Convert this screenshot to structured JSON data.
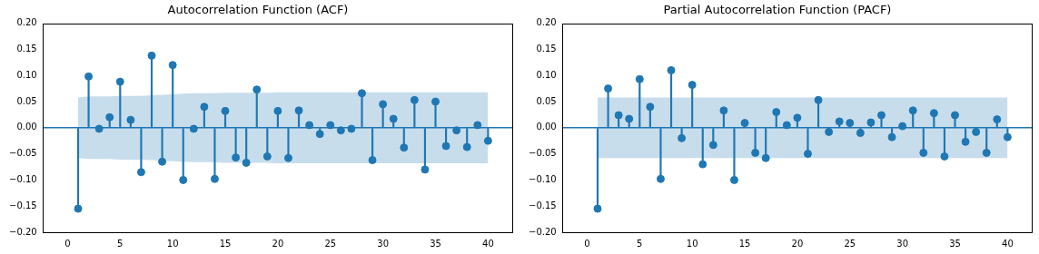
{
  "chart_data": [
    {
      "type": "stem",
      "title": "Autocorrelation Function (ACF)",
      "color": "#1f77b4",
      "x": [
        1,
        2,
        3,
        4,
        5,
        6,
        7,
        8,
        9,
        10,
        11,
        12,
        13,
        14,
        15,
        16,
        17,
        18,
        19,
        20,
        21,
        22,
        23,
        24,
        25,
        26,
        27,
        28,
        29,
        30,
        31,
        32,
        33,
        34,
        35,
        36,
        37,
        38,
        39,
        40
      ],
      "values": [
        -0.155,
        0.098,
        -0.002,
        0.02,
        0.088,
        0.015,
        -0.085,
        0.138,
        -0.065,
        0.12,
        -0.1,
        -0.002,
        0.04,
        -0.098,
        0.032,
        -0.057,
        -0.067,
        0.073,
        -0.055,
        0.032,
        -0.058,
        0.033,
        0.005,
        -0.012,
        0.005,
        -0.005,
        -0.002,
        0.066,
        -0.062,
        0.045,
        0.017,
        -0.038,
        0.053,
        -0.08,
        0.05,
        -0.035,
        -0.005,
        -0.037,
        0.005,
        -0.025
      ],
      "band": {
        "upper": [
          0.058,
          0.06,
          0.06,
          0.06,
          0.061,
          0.061,
          0.061,
          0.062,
          0.063,
          0.064,
          0.065,
          0.066,
          0.066,
          0.066,
          0.067,
          0.067,
          0.067,
          0.067,
          0.067,
          0.068,
          0.068,
          0.068,
          0.068,
          0.068,
          0.068,
          0.068,
          0.068,
          0.068,
          0.068,
          0.068,
          0.068,
          0.068,
          0.068,
          0.068,
          0.068,
          0.068,
          0.068,
          0.068,
          0.068,
          0.068
        ],
        "lower": [
          -0.058,
          -0.06,
          -0.06,
          -0.06,
          -0.061,
          -0.061,
          -0.061,
          -0.062,
          -0.063,
          -0.064,
          -0.065,
          -0.066,
          -0.066,
          -0.066,
          -0.067,
          -0.067,
          -0.067,
          -0.067,
          -0.067,
          -0.068,
          -0.068,
          -0.068,
          -0.068,
          -0.068,
          -0.068,
          -0.068,
          -0.068,
          -0.068,
          -0.068,
          -0.068,
          -0.068,
          -0.068,
          -0.068,
          -0.068,
          -0.068,
          -0.068,
          -0.068,
          -0.068,
          -0.068,
          -0.068
        ]
      },
      "xlim": [
        -2.4,
        42.3
      ],
      "xticks": [
        0,
        5,
        10,
        15,
        20,
        25,
        30,
        35,
        40
      ],
      "ylim": [
        -0.2,
        0.2
      ],
      "yticks": [
        {
          "value": -0.2,
          "label": "−0.20"
        },
        {
          "value": -0.15,
          "label": "−0.15"
        },
        {
          "value": -0.1,
          "label": "−0.10"
        },
        {
          "value": -0.05,
          "label": "−0.05"
        },
        {
          "value": 0,
          "label": "0.00"
        },
        {
          "value": 0.05,
          "label": "0.05"
        },
        {
          "value": 0.1,
          "label": "0.10"
        },
        {
          "value": 0.15,
          "label": "0.15"
        },
        {
          "value": 0.2,
          "label": "0.20"
        }
      ]
    },
    {
      "type": "stem",
      "title": "Partial Autocorrelation Function (PACF)",
      "color": "#1f77b4",
      "x": [
        1,
        2,
        3,
        4,
        5,
        6,
        7,
        8,
        9,
        10,
        11,
        12,
        13,
        14,
        15,
        16,
        17,
        18,
        19,
        20,
        21,
        22,
        23,
        24,
        25,
        26,
        27,
        28,
        29,
        30,
        31,
        32,
        33,
        34,
        35,
        36,
        37,
        38,
        39,
        40
      ],
      "values": [
        -0.155,
        0.075,
        0.024,
        0.017,
        0.093,
        0.04,
        -0.098,
        0.11,
        -0.02,
        0.082,
        -0.07,
        -0.033,
        0.033,
        -0.1,
        0.009,
        -0.048,
        -0.058,
        0.03,
        0.005,
        0.019,
        -0.05,
        0.053,
        -0.008,
        0.012,
        0.009,
        -0.01,
        0.01,
        0.024,
        -0.018,
        0.003,
        0.033,
        -0.048,
        0.028,
        -0.055,
        0.024,
        -0.027,
        -0.008,
        -0.048,
        0.016,
        -0.018
      ],
      "band": {
        "upper": [
          0.058,
          0.058,
          0.058,
          0.058,
          0.058,
          0.058,
          0.058,
          0.058,
          0.058,
          0.058,
          0.058,
          0.058,
          0.058,
          0.058,
          0.058,
          0.058,
          0.058,
          0.058,
          0.058,
          0.058,
          0.058,
          0.058,
          0.058,
          0.058,
          0.058,
          0.058,
          0.058,
          0.058,
          0.058,
          0.058,
          0.058,
          0.058,
          0.058,
          0.058,
          0.058,
          0.058,
          0.058,
          0.058,
          0.058,
          0.058
        ],
        "lower": [
          -0.058,
          -0.058,
          -0.058,
          -0.058,
          -0.058,
          -0.058,
          -0.058,
          -0.058,
          -0.058,
          -0.058,
          -0.058,
          -0.058,
          -0.058,
          -0.058,
          -0.058,
          -0.058,
          -0.058,
          -0.058,
          -0.058,
          -0.058,
          -0.058,
          -0.058,
          -0.058,
          -0.058,
          -0.058,
          -0.058,
          -0.058,
          -0.058,
          -0.058,
          -0.058,
          -0.058,
          -0.058,
          -0.058,
          -0.058,
          -0.058,
          -0.058,
          -0.058,
          -0.058,
          -0.058,
          -0.058
        ]
      },
      "xlim": [
        -2.4,
        42.3
      ],
      "xticks": [
        0,
        5,
        10,
        15,
        20,
        25,
        30,
        35,
        40
      ],
      "ylim": [
        -0.2,
        0.2
      ],
      "yticks": [
        {
          "value": -0.2,
          "label": "−0.20"
        },
        {
          "value": -0.15,
          "label": "−0.15"
        },
        {
          "value": -0.1,
          "label": "−0.10"
        },
        {
          "value": -0.05,
          "label": "−0.05"
        },
        {
          "value": 0,
          "label": "0.00"
        },
        {
          "value": 0.05,
          "label": "0.05"
        },
        {
          "value": 0.1,
          "label": "0.10"
        },
        {
          "value": 0.15,
          "label": "0.15"
        },
        {
          "value": 0.2,
          "label": "0.20"
        }
      ]
    }
  ]
}
